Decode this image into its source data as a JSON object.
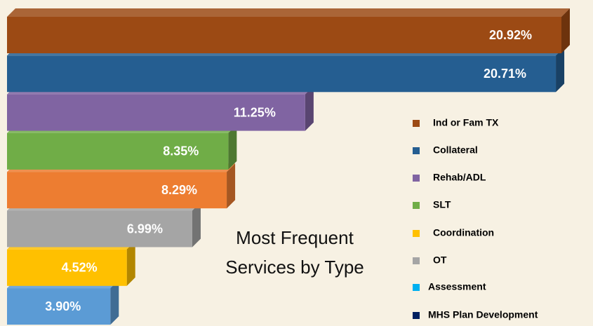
{
  "chart_data": {
    "type": "bar",
    "orientation": "horizontal",
    "title": "Most Frequent Services by Type",
    "categories": [
      null,
      null,
      null,
      null,
      null,
      null,
      null,
      null
    ],
    "values": [
      20.92,
      20.71,
      11.25,
      8.35,
      8.29,
      6.99,
      4.52,
      3.9
    ],
    "value_labels": [
      "20.92%",
      "20.71%",
      "11.25%",
      "8.35%",
      "8.29%",
      "6.99%",
      "4.52%",
      "3.90%"
    ],
    "colors": [
      "#9c4a14",
      "#255e91",
      "#8064a2",
      "#70ad47",
      "#ed7d31",
      "#a5a5a5",
      "#ffc000",
      "#5b9bd5"
    ],
    "legend": [
      {
        "name": "Ind or Fam TX",
        "color": "#9c4a14"
      },
      {
        "name": "Collateral",
        "color": "#255e91"
      },
      {
        "name": "Rehab/ADL",
        "color": "#8064a2"
      },
      {
        "name": "SLT",
        "color": "#70ad47"
      },
      {
        "name": "Coordination",
        "color": "#ffc000"
      },
      {
        "name": "OT",
        "color": "#a5a5a5"
      },
      {
        "name": "Assessment",
        "color": "#00b0f0"
      },
      {
        "name": "MHS Plan Development",
        "color": "#002060"
      }
    ]
  }
}
